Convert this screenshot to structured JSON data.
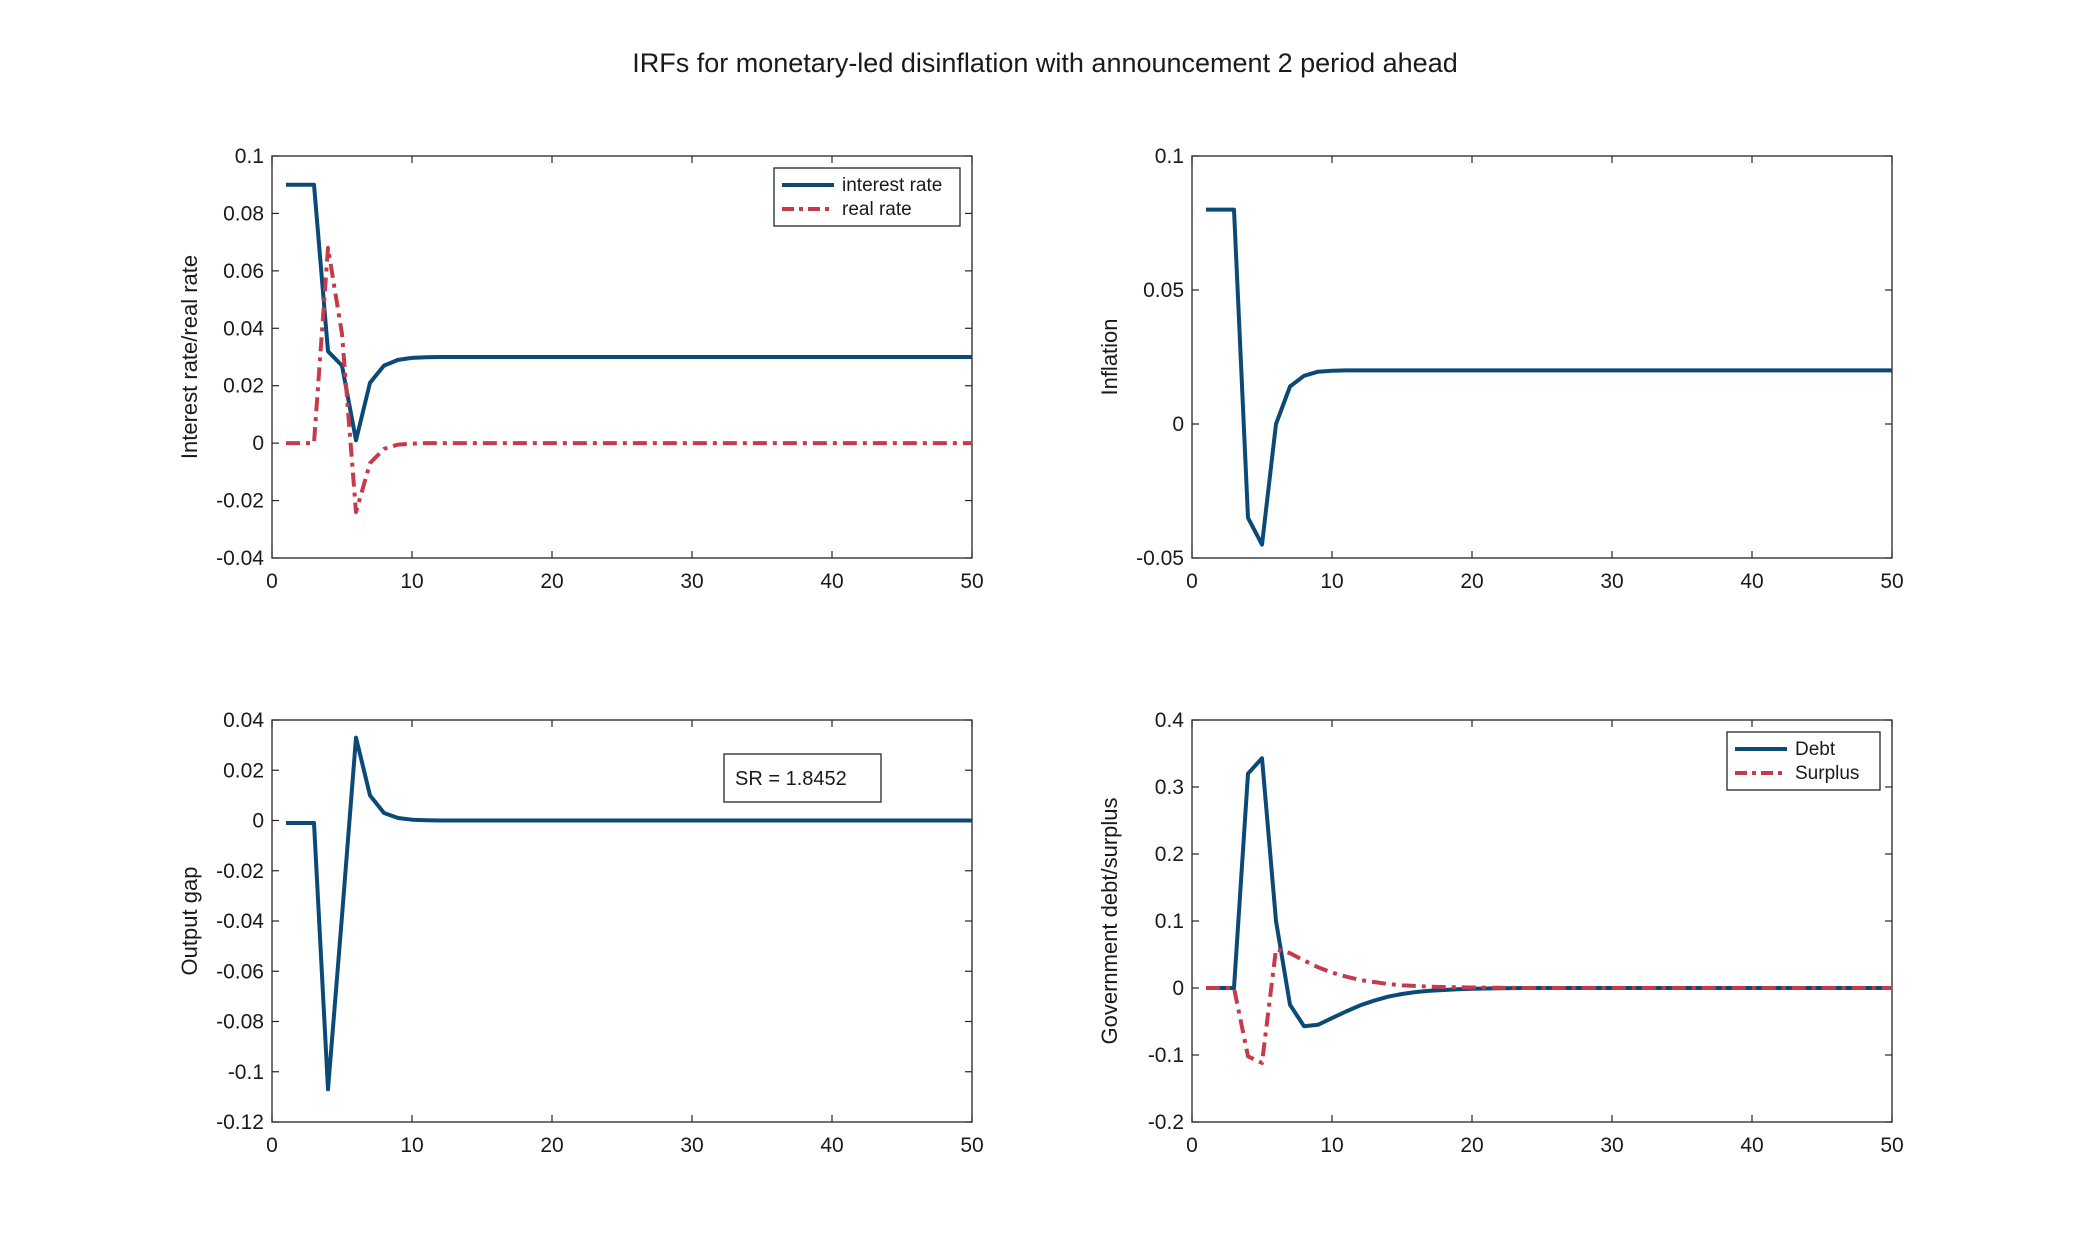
{
  "figure": {
    "title": "IRFs for monetary-led disinflation with announcement 2 period ahead",
    "colors": {
      "blue": "#0b4a77",
      "red": "#c53b4b"
    }
  },
  "chart_data": [
    {
      "type": "line",
      "position": "top-left",
      "xlabel": "",
      "ylabel": "Interest rate/real rate",
      "xlim": [
        0,
        50
      ],
      "ylim": [
        -0.04,
        0.1
      ],
      "xticks": [
        0,
        10,
        20,
        30,
        40,
        50
      ],
      "yticks": [
        -0.04,
        -0.02,
        0,
        0.02,
        0.04,
        0.06,
        0.08,
        0.1
      ],
      "yticklabels": [
        "-0.04",
        "-0.02",
        "0",
        "0.02",
        "0.04",
        "0.06",
        "0.08",
        "0.1"
      ],
      "legend": "top-right",
      "series": [
        {
          "name": "interest rate",
          "color": "#0b4a77",
          "style": "solid",
          "x": [
            1,
            2,
            3,
            4,
            5,
            6,
            7,
            8,
            9,
            10,
            11,
            12,
            50
          ],
          "y": [
            0.09,
            0.09,
            0.09,
            0.032,
            0.027,
            0.001,
            0.021,
            0.027,
            0.029,
            0.0297,
            0.0299,
            0.03,
            0.03
          ]
        },
        {
          "name": "real rate",
          "color": "#c53b4b",
          "style": "dashdot",
          "x": [
            1,
            2,
            3,
            4,
            5,
            6,
            7,
            8,
            9,
            10,
            11,
            12,
            50
          ],
          "y": [
            0,
            0,
            0,
            0.068,
            0.038,
            -0.024,
            -0.007,
            -0.002,
            -0.0005,
            -0.0002,
            0,
            0,
            0
          ]
        }
      ]
    },
    {
      "type": "line",
      "position": "top-right",
      "xlabel": "",
      "ylabel": "Inflation",
      "xlim": [
        0,
        50
      ],
      "ylim": [
        -0.05,
        0.1
      ],
      "xticks": [
        0,
        10,
        20,
        30,
        40,
        50
      ],
      "yticks": [
        -0.05,
        0,
        0.05,
        0.1
      ],
      "yticklabels": [
        "-0.05",
        "0",
        "0.05",
        "0.1"
      ],
      "series": [
        {
          "color": "#0b4a77",
          "style": "solid",
          "x": [
            1,
            2,
            3,
            4,
            5,
            6,
            7,
            8,
            9,
            10,
            11,
            12,
            50
          ],
          "y": [
            0.08,
            0.08,
            0.08,
            -0.035,
            -0.045,
            0.0,
            0.014,
            0.018,
            0.0195,
            0.0199,
            0.02,
            0.02,
            0.02
          ]
        }
      ]
    },
    {
      "type": "line",
      "position": "bottom-left",
      "xlabel": "",
      "ylabel": "Output gap",
      "xlim": [
        0,
        50
      ],
      "ylim": [
        -0.12,
        0.04
      ],
      "xticks": [
        0,
        10,
        20,
        30,
        40,
        50
      ],
      "yticks": [
        -0.12,
        -0.1,
        -0.08,
        -0.06,
        -0.04,
        -0.02,
        0,
        0.02,
        0.04
      ],
      "yticklabels": [
        "-0.12",
        "-0.1",
        "-0.08",
        "-0.06",
        "-0.04",
        "-0.02",
        "0",
        "0.02",
        "0.04"
      ],
      "annotation": "SR = 1.8452",
      "series": [
        {
          "color": "#0b4a77",
          "style": "solid",
          "x": [
            1,
            2,
            3,
            4,
            5,
            6,
            7,
            8,
            9,
            10,
            11,
            12,
            50
          ],
          "y": [
            -0.001,
            -0.001,
            -0.001,
            -0.107,
            -0.038,
            0.033,
            0.01,
            0.003,
            0.001,
            0.0003,
            0.0001,
            0,
            0
          ]
        }
      ]
    },
    {
      "type": "line",
      "position": "bottom-right",
      "xlabel": "",
      "ylabel": "Government debt/surplus",
      "xlim": [
        0,
        50
      ],
      "ylim": [
        -0.2,
        0.4
      ],
      "xticks": [
        0,
        10,
        20,
        30,
        40,
        50
      ],
      "yticks": [
        -0.2,
        -0.1,
        0,
        0.1,
        0.2,
        0.3,
        0.4
      ],
      "yticklabels": [
        "-0.2",
        "-0.1",
        "0",
        "0.1",
        "0.2",
        "0.3",
        "0.4"
      ],
      "legend": "top-right",
      "series": [
        {
          "name": "Debt",
          "color": "#0b4a77",
          "style": "solid",
          "x": [
            1,
            2,
            3,
            4,
            5,
            6,
            7,
            8,
            9,
            10,
            11,
            12,
            13,
            14,
            15,
            16,
            17,
            18,
            19,
            20,
            22,
            24,
            50
          ],
          "y": [
            0,
            0,
            0,
            0.32,
            0.343,
            0.1,
            -0.025,
            -0.057,
            -0.055,
            -0.045,
            -0.035,
            -0.026,
            -0.019,
            -0.013,
            -0.009,
            -0.006,
            -0.004,
            -0.003,
            -0.002,
            -0.001,
            -0.0005,
            0,
            0
          ]
        },
        {
          "name": "Surplus",
          "color": "#c53b4b",
          "style": "dashdot",
          "x": [
            1,
            2,
            3,
            4,
            5,
            6,
            7,
            8,
            9,
            10,
            11,
            12,
            13,
            14,
            15,
            16,
            17,
            18,
            19,
            20,
            22,
            24,
            50
          ],
          "y": [
            0,
            0,
            0,
            -0.102,
            -0.112,
            0.058,
            0.052,
            0.041,
            0.031,
            0.023,
            0.017,
            0.012,
            0.009,
            0.006,
            0.004,
            0.003,
            0.002,
            0.0015,
            0.001,
            0.0007,
            0.0003,
            0,
            0
          ]
        }
      ]
    }
  ]
}
